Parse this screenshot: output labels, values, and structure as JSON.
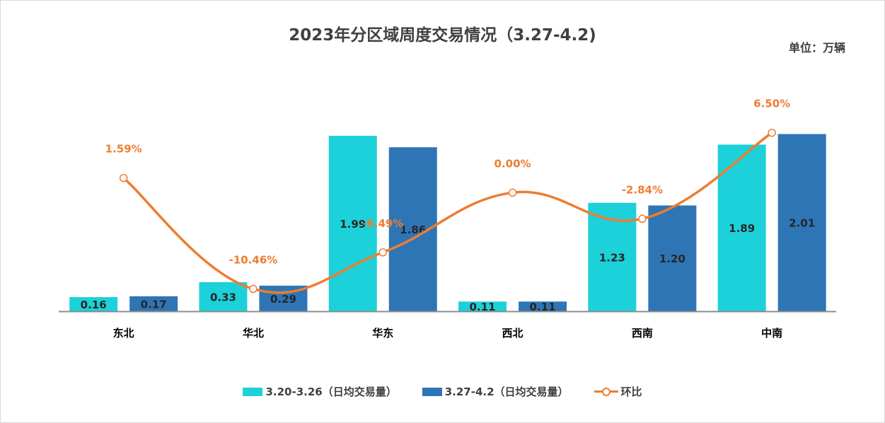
{
  "chart_data": {
    "type": "bar",
    "title": "2023年分区域周度交易情况（3.27-4.2)",
    "unit_label": "单位：万辆",
    "categories": [
      "东北",
      "华北",
      "华东",
      "西北",
      "西南",
      "中南"
    ],
    "series": [
      {
        "name": "3.20-3.26（日均交易量）",
        "type": "bar",
        "values": [
          0.16,
          0.33,
          1.99,
          0.11,
          1.23,
          1.89
        ],
        "labels": [
          "0.16",
          "0.33",
          "1.99",
          "0.11",
          "1.23",
          "1.89"
        ],
        "color": "#1cd1d9"
      },
      {
        "name": "3.27-4.2（日均交易量）",
        "type": "bar",
        "values": [
          0.17,
          0.29,
          1.86,
          0.11,
          1.2,
          2.01
        ],
        "labels": [
          "0.17",
          "0.29",
          "1.86",
          "0.11",
          "1.20",
          "2.01"
        ],
        "color": "#2e75b6"
      },
      {
        "name": "环比",
        "type": "line",
        "values": [
          1.59,
          -10.46,
          -6.49,
          0.0,
          -2.84,
          6.5
        ],
        "labels": [
          "1.59%",
          "-10.46%",
          "-6.49%",
          "0.00%",
          "-2.84%",
          "6.50%"
        ],
        "color": "#ed7d31"
      }
    ],
    "bar_axis_range": [
      0,
      2.03
    ],
    "line_axis_range": [
      -11.35,
      9.4
    ],
    "grid": false,
    "legend_position": "bottom"
  }
}
